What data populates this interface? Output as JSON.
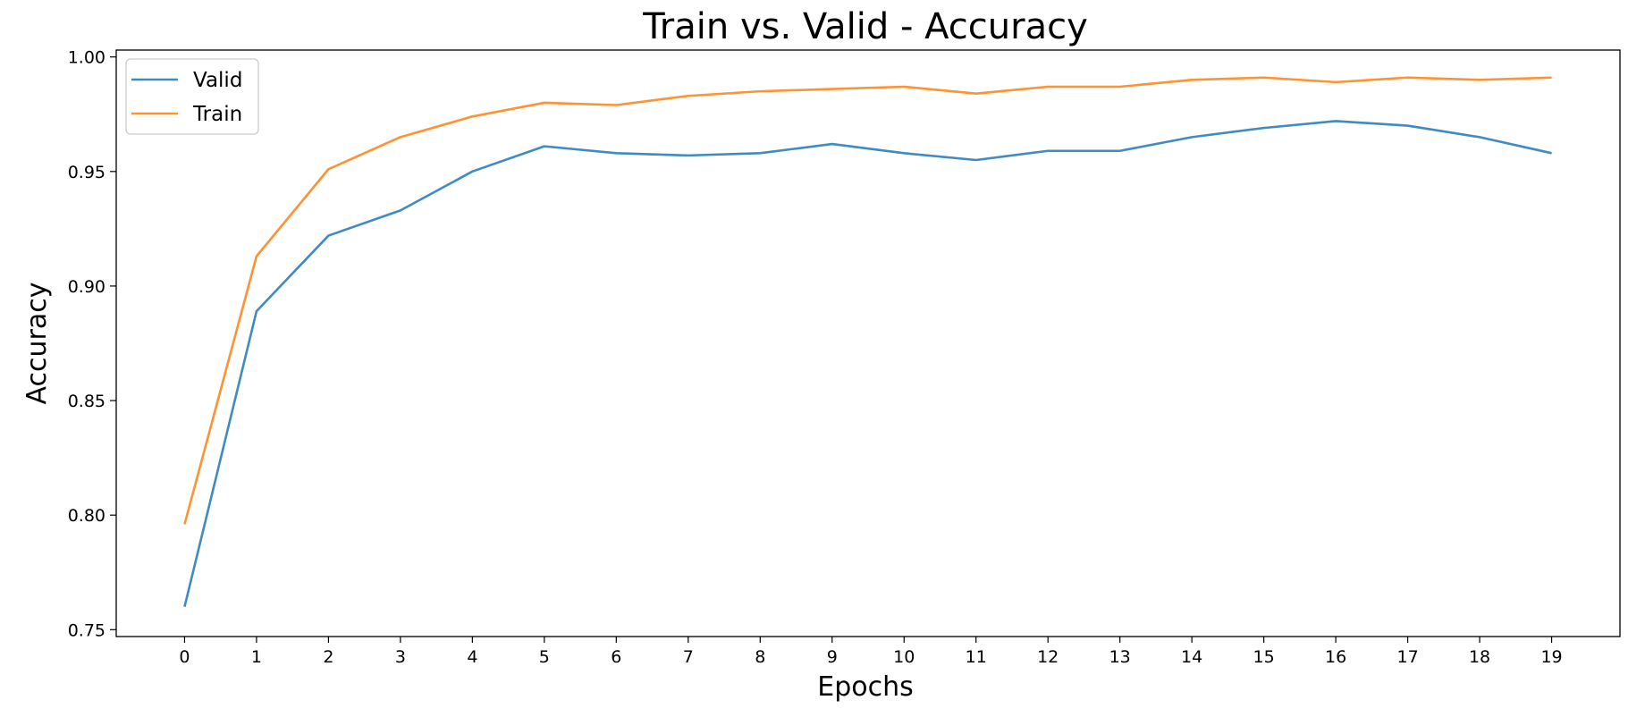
{
  "chart_data": {
    "type": "line",
    "title": "Train vs. Valid - Accuracy",
    "xlabel": "Epochs",
    "ylabel": "Accuracy",
    "x": [
      0,
      1,
      2,
      3,
      4,
      5,
      6,
      7,
      8,
      9,
      10,
      11,
      12,
      13,
      14,
      15,
      16,
      17,
      18,
      19
    ],
    "xlim": [
      -0.95,
      19.95
    ],
    "ylim": [
      0.747,
      1.003
    ],
    "xticks": [
      "0",
      "1",
      "2",
      "3",
      "4",
      "5",
      "6",
      "7",
      "8",
      "9",
      "10",
      "11",
      "12",
      "13",
      "14",
      "15",
      "16",
      "17",
      "18",
      "19"
    ],
    "yticks": [
      "0.75",
      "0.80",
      "0.85",
      "0.90",
      "0.95",
      "1.00"
    ],
    "grid": false,
    "legend_position": "top-left",
    "series": [
      {
        "name": "Valid",
        "color": "#1f77b4",
        "values": [
          0.76,
          0.889,
          0.922,
          0.933,
          0.95,
          0.961,
          0.958,
          0.957,
          0.958,
          0.962,
          0.958,
          0.955,
          0.959,
          0.959,
          0.965,
          0.969,
          0.972,
          0.97,
          0.965,
          0.958
        ]
      },
      {
        "name": "Train",
        "color": "#ff7f0e",
        "values": [
          0.796,
          0.913,
          0.951,
          0.965,
          0.974,
          0.98,
          0.979,
          0.983,
          0.985,
          0.986,
          0.987,
          0.984,
          0.987,
          0.987,
          0.99,
          0.991,
          0.989,
          0.991,
          0.99,
          0.991
        ]
      }
    ]
  }
}
